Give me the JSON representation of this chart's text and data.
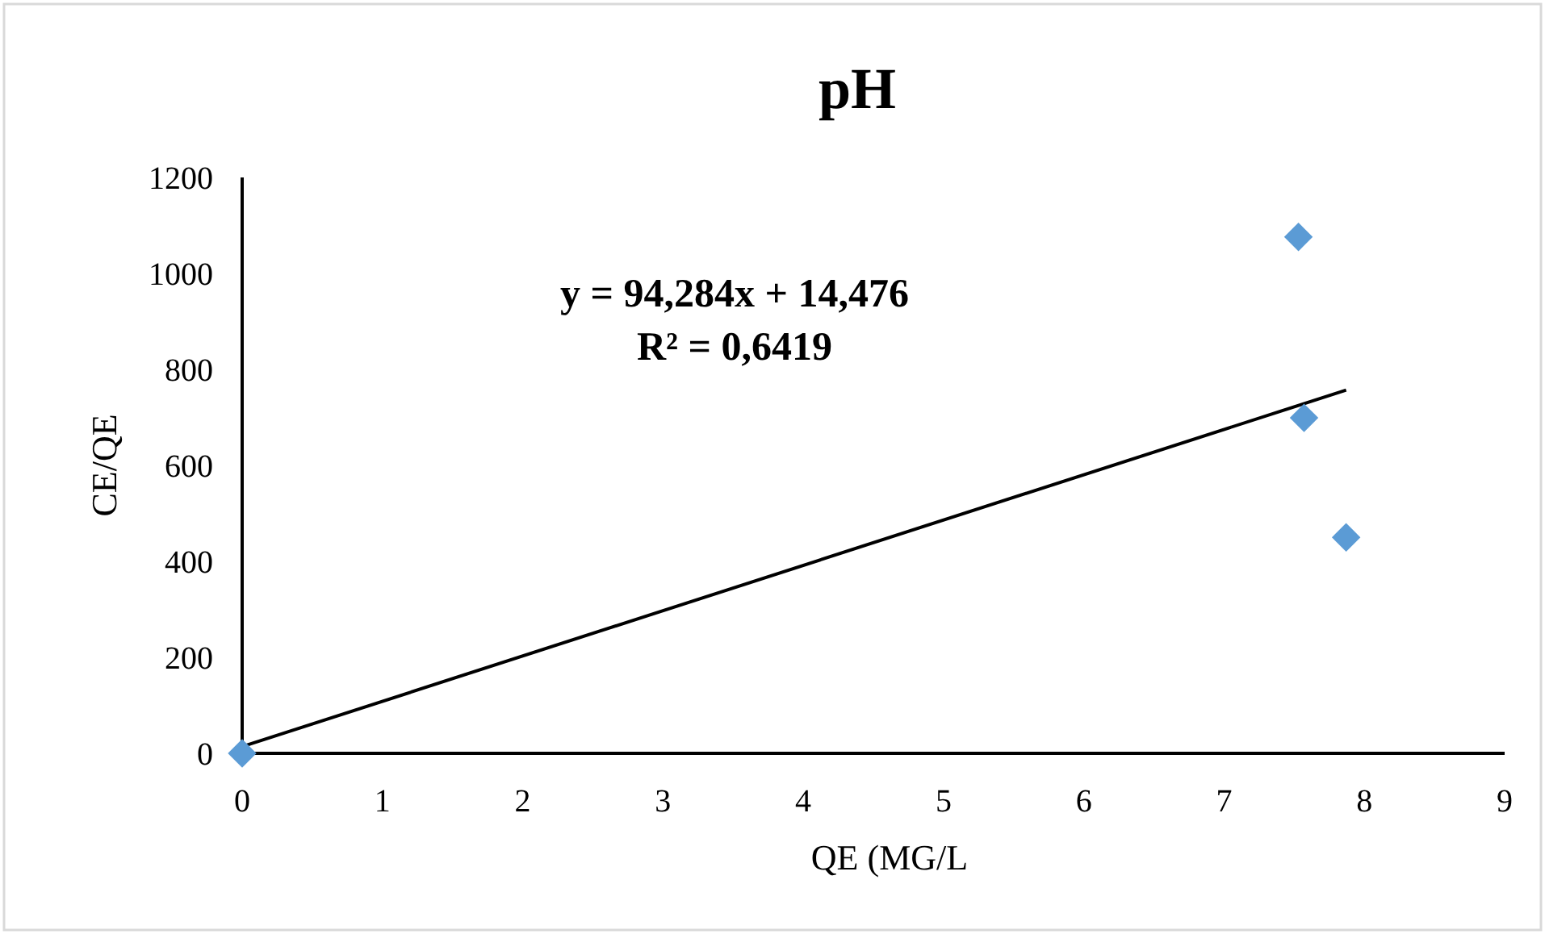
{
  "chart_data": {
    "type": "scatter",
    "title": "pH",
    "xlabel": "QE (MG/L",
    "ylabel": "CE/QE",
    "annotations": [
      "y = 94,284x + 14,476",
      "R² = 0,6419"
    ],
    "series": [
      {
        "color": "#5b9bd5",
        "marker": "diamond",
        "x": [
          0,
          7.53,
          7.57,
          7.87
        ],
        "values": [
          0,
          1076,
          699,
          450
        ]
      },
      {
        "type": "line",
        "color": "#000000",
        "marker": "none",
        "line_style": "solid",
        "x": [
          0,
          7.87
        ],
        "values": [
          14,
          757
        ]
      }
    ],
    "xlim": [
      0,
      9
    ],
    "xticks": [
      0,
      1,
      2,
      3,
      4,
      5,
      6,
      7,
      8,
      9
    ],
    "ylim": [
      0,
      1200
    ],
    "yticks": [
      0,
      200,
      400,
      600,
      800,
      1000,
      1200
    ],
    "grid": false
  }
}
